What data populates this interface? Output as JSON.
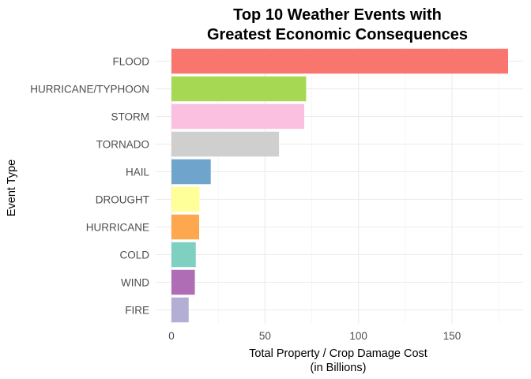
{
  "chart_data": {
    "type": "bar",
    "orientation": "horizontal",
    "title_lines": [
      "Top 10 Weather Events with",
      "Greatest Economic Consequences"
    ],
    "xlabel_lines": [
      "Total Property / Crop Damage Cost",
      "(in Billions)"
    ],
    "ylabel": "Event Type",
    "xlim": [
      0,
      180
    ],
    "xticks": [
      0,
      50,
      100,
      150
    ],
    "xtick_labels": [
      "0",
      "50",
      "100",
      "150"
    ],
    "grid": true,
    "legend": "none",
    "categories": [
      "FLOOD",
      "HURRICANE/TYPHOON",
      "STORM",
      "TORNADO",
      "HAIL",
      "DROUGHT",
      "HURRICANE",
      "COLD",
      "WIND",
      "FIRE"
    ],
    "values": [
      180.0,
      72.0,
      71.0,
      57.5,
      21.0,
      15.0,
      14.8,
      13.0,
      12.5,
      9.2
    ],
    "colors": [
      "#f8766d",
      "#a6d854",
      "#fbc0e0",
      "#cfcfcf",
      "#6fa4cc",
      "#ffff99",
      "#fda74f",
      "#7fd0c0",
      "#ae6db5",
      "#b3aed4"
    ]
  }
}
